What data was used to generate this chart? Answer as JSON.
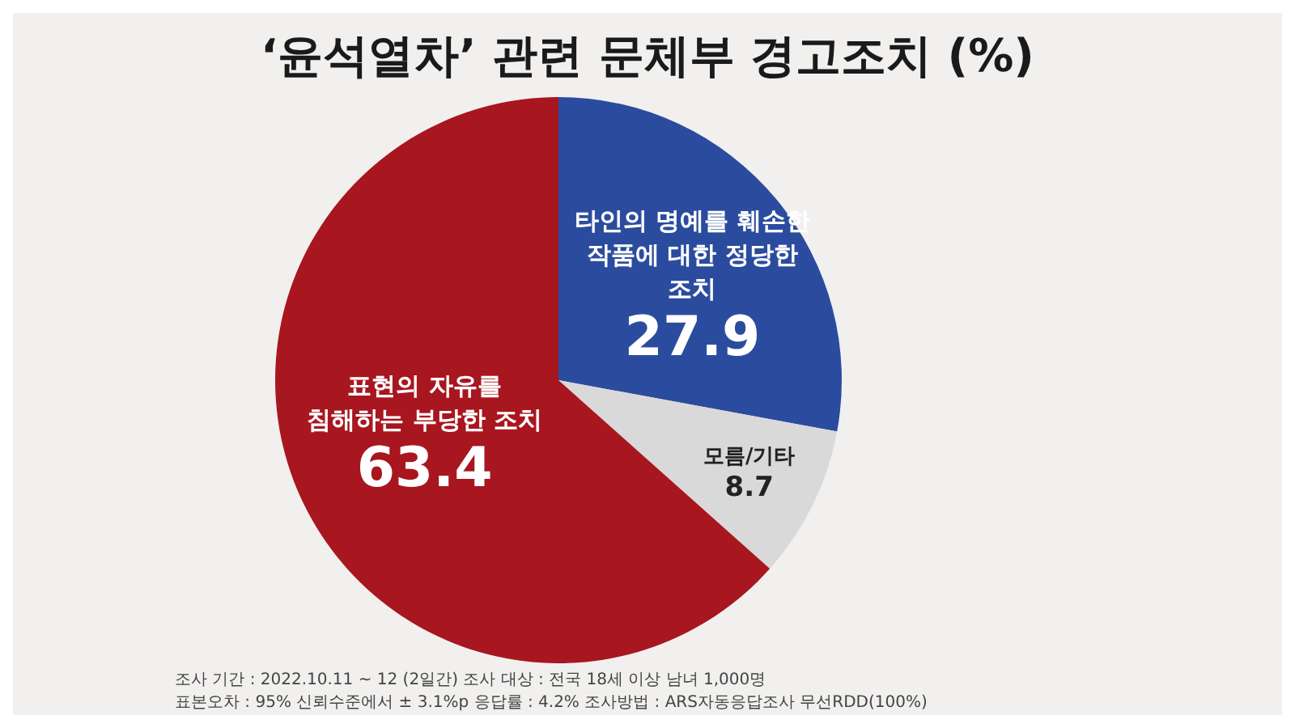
{
  "chart_data": {
    "type": "pie",
    "title": "‘윤석열차’ 관련 문체부 경고조치 (%)",
    "categories": [
      "타인의 명예를 훼손한 작품에 대한 정당한 조치",
      "모름/기타",
      "표현의 자유를 침해하는 부당한 조치"
    ],
    "values": [
      27.9,
      8.7,
      63.4
    ],
    "colors": [
      "#2b4c9e",
      "#d9d9d9",
      "#a8161f"
    ],
    "data_labels": true,
    "legend": false,
    "annotations": [
      "조사 기간 : 2022.10.11 ~ 12 (2일간)  조사 대상 : 전국 18세 이상 남녀 1,000명",
      "표본오차 : 95% 신뢰수준에서 ± 3.1%p  응답률 : 4.2%  조사방법 : ARS자동응답조사 무선RDD(100%)"
    ]
  }
}
